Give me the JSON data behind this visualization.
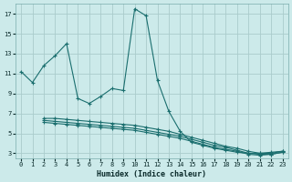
{
  "xlabel": "Humidex (Indice chaleur)",
  "background_color": "#cceaea",
  "grid_color": "#aacccc",
  "line_color": "#1a6e6e",
  "xlim": [
    -0.5,
    23.5
  ],
  "ylim": [
    2.5,
    18
  ],
  "xticks": [
    0,
    1,
    2,
    3,
    4,
    5,
    6,
    7,
    8,
    9,
    10,
    11,
    12,
    13,
    14,
    15,
    16,
    17,
    18,
    19,
    20,
    21,
    22,
    23
  ],
  "yticks": [
    3,
    5,
    7,
    9,
    11,
    13,
    15,
    17
  ],
  "line1_x": [
    0,
    1,
    2,
    3,
    4,
    5,
    6,
    7,
    8,
    9,
    10,
    11,
    12,
    13,
    14,
    15,
    16,
    17,
    18,
    19,
    20,
    21,
    22,
    23
  ],
  "line1_y": [
    11.2,
    10.1,
    11.8,
    12.8,
    14.0,
    8.5,
    8.0,
    8.7,
    9.5,
    9.3,
    17.5,
    16.8,
    10.3,
    7.2,
    5.2,
    4.1,
    3.8,
    3.5,
    3.3,
    3.1,
    3.0,
    3.0,
    3.1,
    3.2
  ],
  "line2_x": [
    2,
    3,
    4,
    5,
    6,
    7,
    8,
    9,
    10,
    11,
    12,
    13,
    14,
    15,
    16,
    17,
    18,
    19,
    20,
    21,
    22,
    23
  ],
  "line2_y": [
    6.5,
    6.5,
    6.4,
    6.3,
    6.2,
    6.1,
    6.0,
    5.9,
    5.8,
    5.6,
    5.4,
    5.2,
    4.9,
    4.6,
    4.3,
    4.0,
    3.7,
    3.5,
    3.2,
    3.0,
    3.0,
    3.2
  ],
  "line3_x": [
    2,
    3,
    4,
    5,
    6,
    7,
    8,
    9,
    10,
    11,
    12,
    13,
    14,
    15,
    16,
    17,
    18,
    19,
    20,
    21,
    22,
    23
  ],
  "line3_y": [
    6.3,
    6.2,
    6.1,
    6.0,
    5.9,
    5.8,
    5.7,
    5.6,
    5.5,
    5.3,
    5.1,
    4.9,
    4.7,
    4.4,
    4.1,
    3.8,
    3.6,
    3.3,
    3.0,
    2.9,
    2.9,
    3.1
  ],
  "line4_x": [
    2,
    3,
    4,
    5,
    6,
    7,
    8,
    9,
    10,
    11,
    12,
    13,
    14,
    15,
    16,
    17,
    18,
    19,
    20,
    21,
    22,
    23
  ],
  "line4_y": [
    6.1,
    6.0,
    5.9,
    5.8,
    5.7,
    5.6,
    5.5,
    5.4,
    5.3,
    5.1,
    4.9,
    4.7,
    4.5,
    4.2,
    3.9,
    3.6,
    3.4,
    3.2,
    2.9,
    2.8,
    2.9,
    3.1
  ]
}
